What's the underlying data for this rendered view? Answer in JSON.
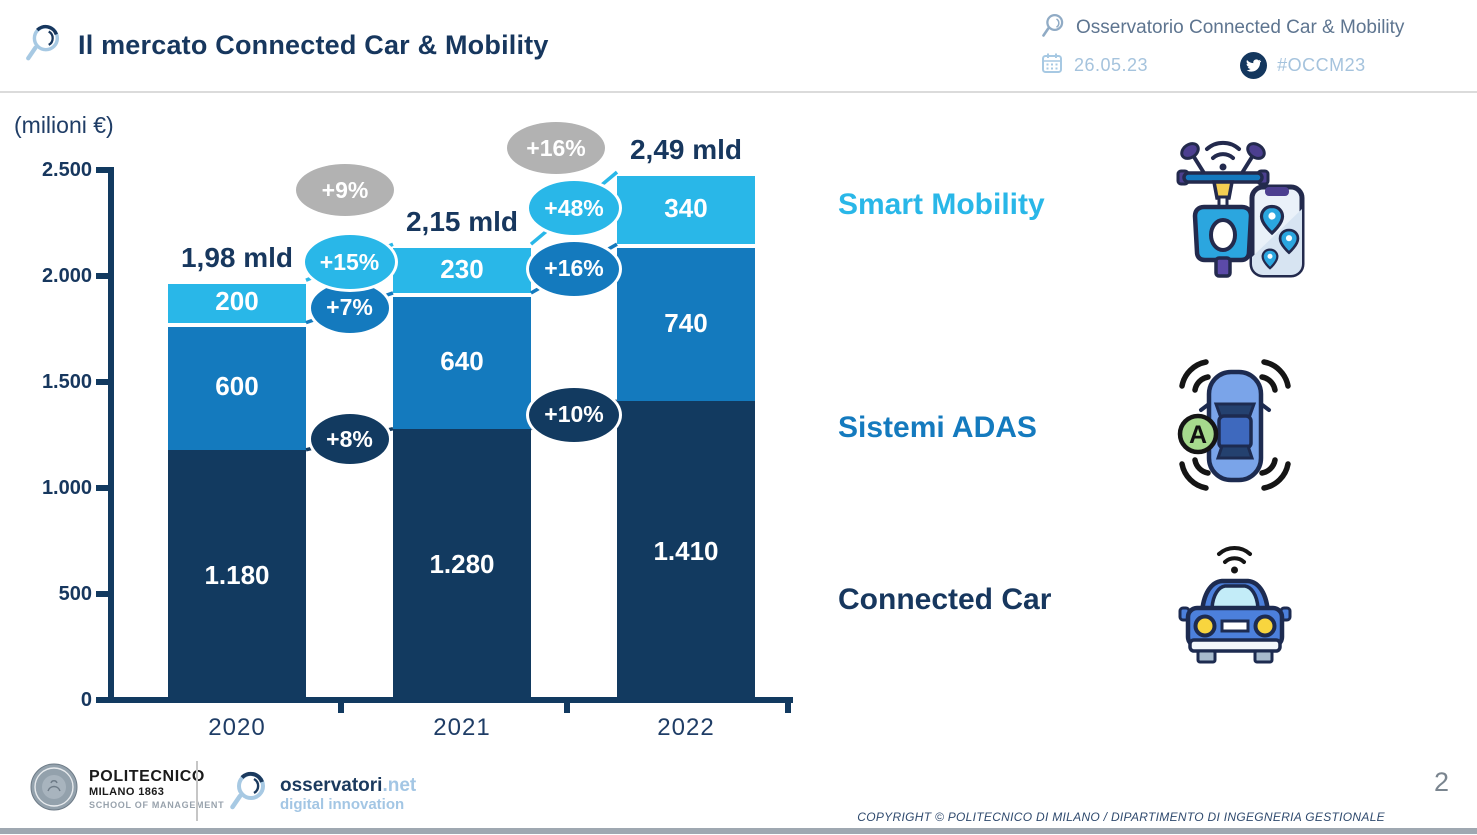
{
  "header": {
    "title": "Il mercato Connected Car & Mobility",
    "observatory": "Osservatorio Connected Car & Mobility",
    "date": "26.05.23",
    "hashtag": "#OCCM23"
  },
  "chart_data": {
    "type": "bar",
    "stacked": true,
    "title": "Il mercato Connected Car & Mobility",
    "unit_label": "(milioni €)",
    "categories": [
      "2020",
      "2021",
      "2022"
    ],
    "series": [
      {
        "name": "Connected Car",
        "color": "#123A60",
        "values": [
          1180,
          1280,
          1410
        ],
        "value_labels": [
          "1.180",
          "1.280",
          "1.410"
        ]
      },
      {
        "name": "Sistemi ADAS",
        "color": "#147ABE",
        "values": [
          600,
          640,
          740
        ],
        "value_labels": [
          "600",
          "640",
          "740"
        ]
      },
      {
        "name": "Smart Mobility",
        "color": "#29B7E8",
        "values": [
          200,
          230,
          340
        ],
        "value_labels": [
          "200",
          "230",
          "340"
        ]
      }
    ],
    "totals": [
      {
        "value": 1980,
        "label": "1,98 mld"
      },
      {
        "value": 2150,
        "label": "2,15 mld"
      },
      {
        "value": 2490,
        "label": "2,49 mld"
      }
    ],
    "growth": [
      {
        "total": "+9%",
        "segments": [
          "+8%",
          "+7%",
          "+15%"
        ]
      },
      {
        "total": "+16%",
        "segments": [
          "+10%",
          "+16%",
          "+48%"
        ]
      }
    ],
    "ylim": [
      0,
      2500
    ],
    "yticks": [
      {
        "value": 0,
        "label": "0"
      },
      {
        "value": 500,
        "label": "500"
      },
      {
        "value": 1000,
        "label": "1.000"
      },
      {
        "value": 1500,
        "label": "1.500"
      },
      {
        "value": 2000,
        "label": "2.000"
      },
      {
        "value": 2500,
        "label": "2.500"
      }
    ],
    "grid": false,
    "legend_position": "right"
  },
  "legend": {
    "items": [
      {
        "label": "Smart Mobility",
        "color": "#29B7E8",
        "icon": "scooter-phone-icon"
      },
      {
        "label": "Sistemi ADAS",
        "color": "#147ABE",
        "icon": "adas-car-icon"
      },
      {
        "label": "Connected Car",
        "color": "#17375E",
        "icon": "connected-car-icon"
      }
    ]
  },
  "footer": {
    "politecnico_line1": "POLITECNICO",
    "politecnico_line2": "MILANO 1863",
    "politecnico_line3": "SCHOOL OF MANAGEMENT",
    "osservatori_brand": "osservatori",
    "osservatori_tld": ".net",
    "osservatori_subtitle": "digital innovation",
    "page_number": "2",
    "copyright": "COPYRIGHT © POLITECNICO DI MILANO / DIPARTIMENTO DI INGEGNERIA GESTIONALE"
  },
  "icons": {
    "header_left": "magnifier-icon",
    "observatory": "magnifier-icon",
    "date": "calendar-icon",
    "hashtag": "twitter-icon",
    "legend": [
      "scooter-phone-icon",
      "adas-car-icon",
      "connected-car-icon"
    ],
    "footer": [
      "politecnico-seal-icon",
      "magnifier-icon"
    ]
  },
  "colors": {
    "navy": "#123A60",
    "blue": "#147ABE",
    "cyan": "#29B7E8",
    "gray_bubble": "#B2B2B2",
    "text_navy": "#17375E",
    "light_blue": "#A7C9E3",
    "steel": "#5E7590"
  }
}
